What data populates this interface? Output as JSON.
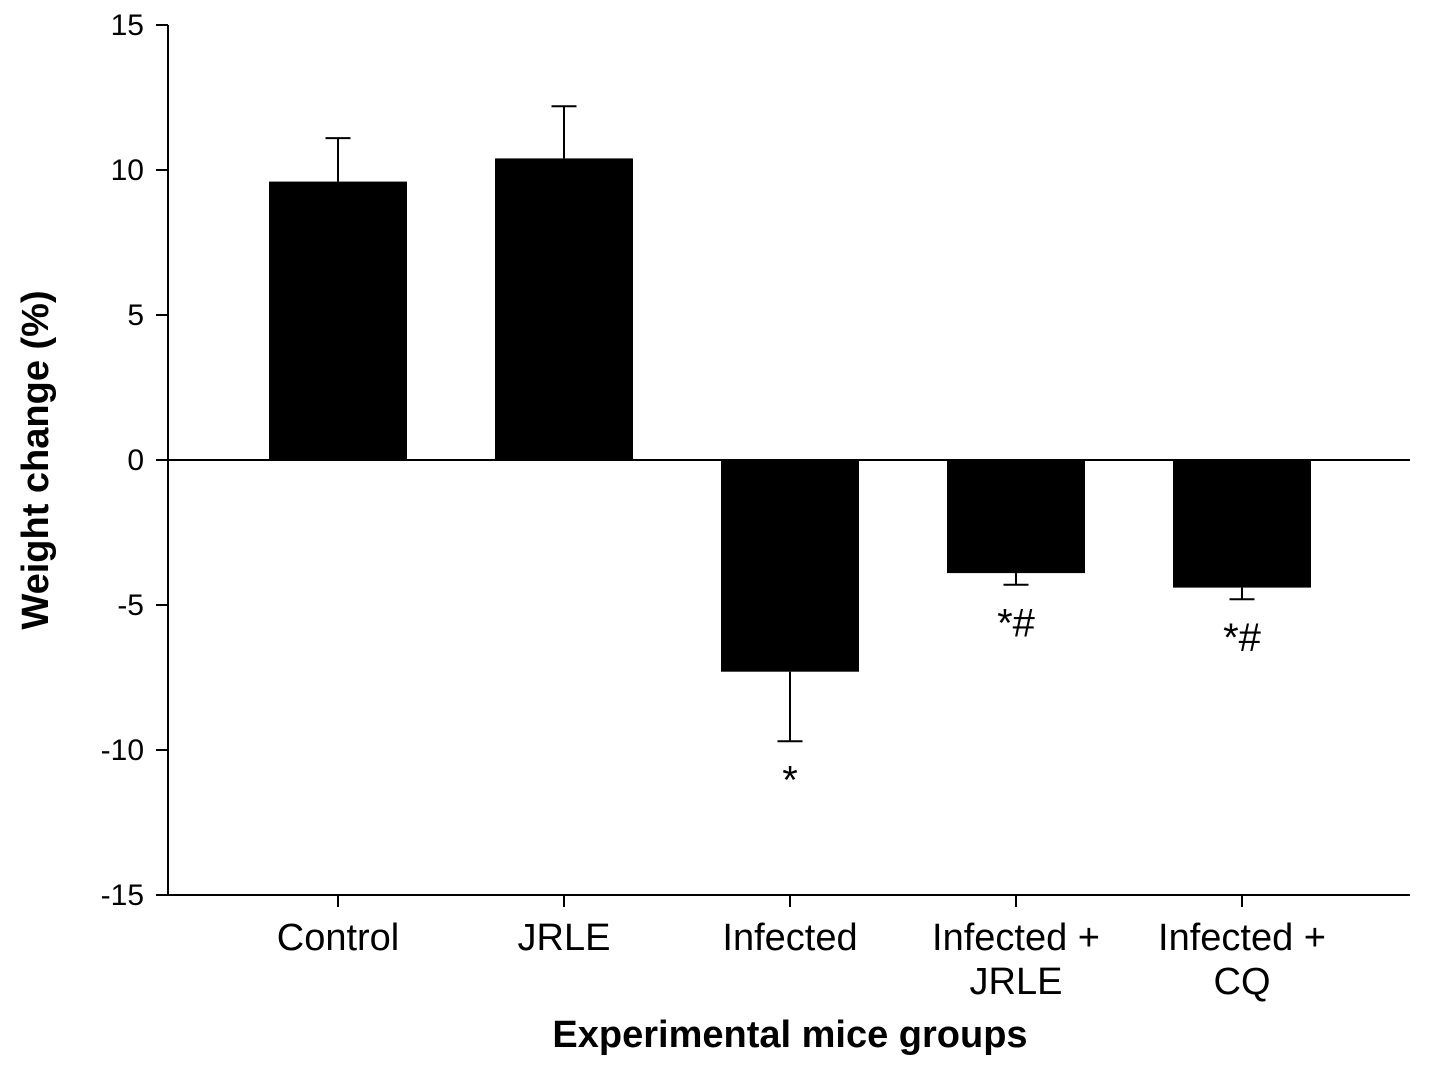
{
  "chart_data": {
    "type": "bar",
    "title": "",
    "xlabel": "Experimental mice groups",
    "ylabel": "Weight change (%)",
    "ylim": [
      -15,
      15
    ],
    "yticks": [
      15,
      10,
      5,
      0,
      -5,
      -10,
      -15
    ],
    "categories": [
      [
        "Control"
      ],
      [
        "JRLE"
      ],
      [
        "Infected"
      ],
      [
        "Infected +",
        "JRLE"
      ],
      [
        "Infected +",
        "CQ"
      ]
    ],
    "values": [
      9.6,
      10.4,
      -7.3,
      -3.9,
      -4.4
    ],
    "errors": [
      1.5,
      1.8,
      2.4,
      0.4,
      0.4
    ],
    "annotations": [
      "",
      "",
      "*",
      "*#",
      "*#"
    ],
    "bar_color": "#000000",
    "grid": false
  }
}
